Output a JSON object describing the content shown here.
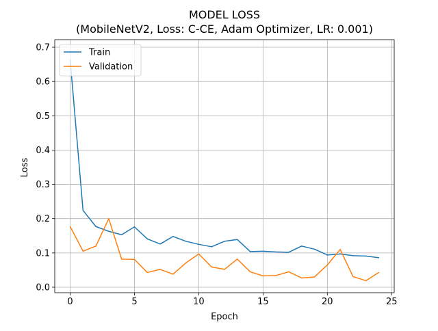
{
  "chart_data": {
    "type": "line",
    "title": "MODEL LOSS",
    "subtitle": "(MobileNetV2, Loss: C-CE, Adam Optimizer, LR: 0.001)",
    "xlabel": "Epoch",
    "ylabel": "Loss",
    "xlim": [
      -1.2,
      25.2
    ],
    "ylim": [
      -0.016,
      0.722
    ],
    "xticks": [
      0,
      5,
      10,
      15,
      20,
      25
    ],
    "yticks": [
      0.0,
      0.1,
      0.2,
      0.3,
      0.4,
      0.5,
      0.6,
      0.7
    ],
    "grid": true,
    "legend_position": "top-left",
    "x": [
      0,
      1,
      2,
      3,
      4,
      5,
      6,
      7,
      8,
      9,
      10,
      11,
      12,
      13,
      14,
      15,
      16,
      17,
      18,
      19,
      20,
      21,
      22,
      23,
      24
    ],
    "series": [
      {
        "name": "Train",
        "color": "#1f77b4",
        "values": [
          0.663,
          0.224,
          0.177,
          0.163,
          0.153,
          0.176,
          0.141,
          0.126,
          0.148,
          0.134,
          0.125,
          0.118,
          0.134,
          0.139,
          0.104,
          0.105,
          0.103,
          0.102,
          0.12,
          0.111,
          0.094,
          0.097,
          0.092,
          0.091,
          0.086
        ]
      },
      {
        "name": "Validation",
        "color": "#ff7f0e",
        "values": [
          0.177,
          0.105,
          0.12,
          0.2,
          0.082,
          0.081,
          0.043,
          0.052,
          0.038,
          0.071,
          0.097,
          0.059,
          0.052,
          0.082,
          0.045,
          0.033,
          0.034,
          0.045,
          0.027,
          0.03,
          0.065,
          0.11,
          0.031,
          0.019,
          0.043
        ]
      }
    ]
  }
}
